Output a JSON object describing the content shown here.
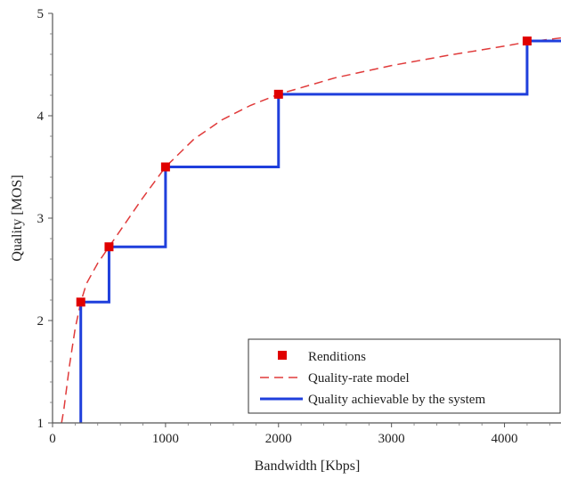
{
  "chart_data": {
    "type": "line",
    "title": "",
    "xlabel": "Bandwidth [Kbps]",
    "ylabel": "Quality [MOS]",
    "xlim": [
      0,
      4500
    ],
    "ylim": [
      1,
      5
    ],
    "x_ticks": [
      0,
      1000,
      2000,
      3000,
      4000
    ],
    "x_tick_labels": [
      "0",
      "1000",
      "2000",
      "3000",
      "4000"
    ],
    "y_ticks": [
      1,
      2,
      3,
      4,
      5
    ],
    "y_tick_labels": [
      "1",
      "2",
      "3",
      "4",
      "5"
    ],
    "grid": false,
    "legend_position": "bottom-right",
    "series": [
      {
        "name": "Renditions",
        "kind": "scatter",
        "color": "#e00000",
        "x": [
          250,
          500,
          1000,
          2000,
          4200
        ],
        "y": [
          2.18,
          2.72,
          3.5,
          4.21,
          4.73
        ]
      },
      {
        "name": "Quality-rate model",
        "kind": "line-dashed",
        "color": "#e03a3a",
        "x": [
          80,
          100,
          150,
          200,
          250,
          300,
          400,
          500,
          600,
          800,
          1000,
          1250,
          1500,
          1750,
          2000,
          2500,
          3000,
          3500,
          4000,
          4200,
          4500
        ],
        "y": [
          1.0,
          1.13,
          1.56,
          1.92,
          2.18,
          2.36,
          2.56,
          2.72,
          2.88,
          3.2,
          3.5,
          3.77,
          3.96,
          4.1,
          4.21,
          4.37,
          4.49,
          4.59,
          4.68,
          4.72,
          4.76
        ]
      },
      {
        "name": "Quality achievable by the system",
        "kind": "step",
        "color": "#1f3fdc",
        "x": [
          250,
          250,
          500,
          500,
          1000,
          1000,
          2000,
          2000,
          4200,
          4200,
          4500
        ],
        "y": [
          1.0,
          2.18,
          2.18,
          2.72,
          2.72,
          3.5,
          3.5,
          4.21,
          4.21,
          4.73,
          4.73
        ]
      }
    ]
  }
}
